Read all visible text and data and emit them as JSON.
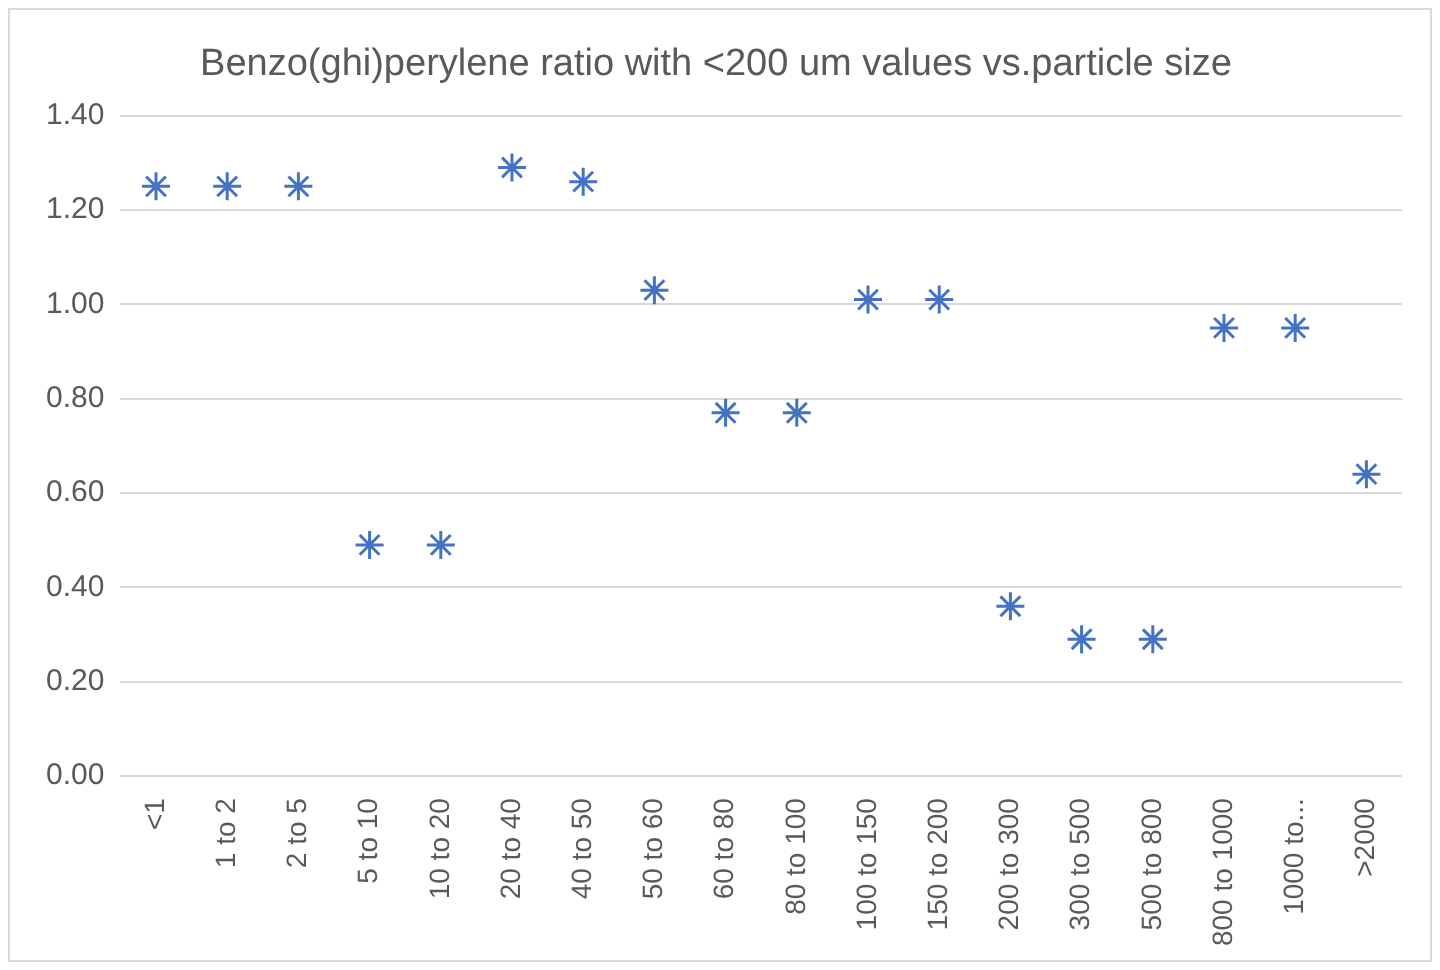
{
  "chart_data": {
    "type": "scatter",
    "title": "Benzo(ghi)perylene ratio with <200 um values vs.particle size",
    "categories": [
      "<1",
      "1 to 2",
      "2 to 5",
      "5 to 10",
      "10 to 20",
      "20 to 40",
      "40 to 50",
      "50 to 60",
      "60 to 80",
      "80 to 100",
      "100 to 150",
      "150 to 200",
      "200 to 300",
      "300 to 500",
      "500 to 800",
      "800 to 1000",
      "1000 to...",
      ">2000"
    ],
    "series": [
      {
        "color": "#4472c4",
        "values": [
          1.25,
          1.25,
          1.25,
          0.49,
          0.49,
          1.29,
          1.26,
          1.03,
          0.77,
          0.77,
          1.01,
          1.01,
          0.36,
          0.29,
          0.29,
          0.95,
          0.95,
          0.64
        ]
      }
    ],
    "ylim": [
      0,
      1.4
    ],
    "yticks": [
      {
        "value": 0,
        "label": "0.00"
      },
      {
        "value": 0.2,
        "label": "0.20"
      },
      {
        "value": 0.4,
        "label": "0.40"
      },
      {
        "value": 0.6,
        "label": "0.60"
      },
      {
        "value": 0.8,
        "label": "0.80"
      },
      {
        "value": 1,
        "label": "1.00"
      },
      {
        "value": 1.2,
        "label": "1.20"
      },
      {
        "value": 1.4,
        "label": "1.40"
      }
    ],
    "grid": "y",
    "legend": false,
    "marker": "cross"
  }
}
